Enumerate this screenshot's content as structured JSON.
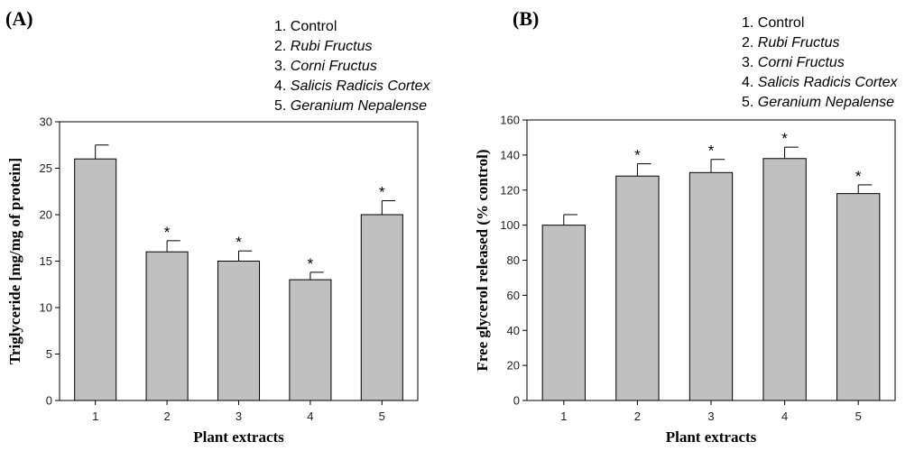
{
  "chart_data": [
    {
      "type": "bar",
      "panel_label": "(A)",
      "categories": [
        "1",
        "2",
        "3",
        "4",
        "5"
      ],
      "values": [
        26,
        16,
        15,
        13,
        20
      ],
      "errors": [
        1.5,
        1.2,
        1.1,
        0.8,
        1.5
      ],
      "significant": [
        false,
        true,
        true,
        true,
        true
      ],
      "significance_marker": "*",
      "ylim": [
        0,
        30
      ],
      "yticks": [
        0,
        5,
        10,
        15,
        20,
        25,
        30
      ],
      "xlabel": "Plant extracts",
      "ylabel": "Triglyceride [mg/mg of protein]",
      "legend": [
        {
          "num": "1.",
          "name": "Control",
          "italic": false
        },
        {
          "num": "2.",
          "name": "Rubi Fructus",
          "italic": true
        },
        {
          "num": "3.",
          "name": "Corni Fructus",
          "italic": true
        },
        {
          "num": "4.",
          "name": "Salicis Radicis Cortex",
          "italic": true
        },
        {
          "num": "5.",
          "name": "Geranium Nepalense",
          "italic": true
        }
      ],
      "bar_color": "#c0c0c0"
    },
    {
      "type": "bar",
      "panel_label": "(B)",
      "categories": [
        "1",
        "2",
        "3",
        "4",
        "5"
      ],
      "values": [
        100,
        128,
        130,
        138,
        118
      ],
      "errors": [
        6,
        7,
        7.5,
        6.5,
        5
      ],
      "significant": [
        false,
        true,
        true,
        true,
        true
      ],
      "significance_marker": "*",
      "ylim": [
        0,
        160
      ],
      "yticks": [
        0,
        20,
        40,
        60,
        80,
        100,
        120,
        140,
        160
      ],
      "xlabel": "Plant extracts",
      "ylabel": "Free glycerol released (% control)",
      "legend": [
        {
          "num": "1.",
          "name": "Control",
          "italic": false
        },
        {
          "num": "2.",
          "name": "Rubi Fructus",
          "italic": true
        },
        {
          "num": "3.",
          "name": "Corni Fructus",
          "italic": true
        },
        {
          "num": "4.",
          "name": "Salicis Radicis Cortex",
          "italic": true
        },
        {
          "num": "5.",
          "name": "Geranium Nepalense",
          "italic": true
        }
      ],
      "bar_color": "#c0c0c0"
    }
  ]
}
